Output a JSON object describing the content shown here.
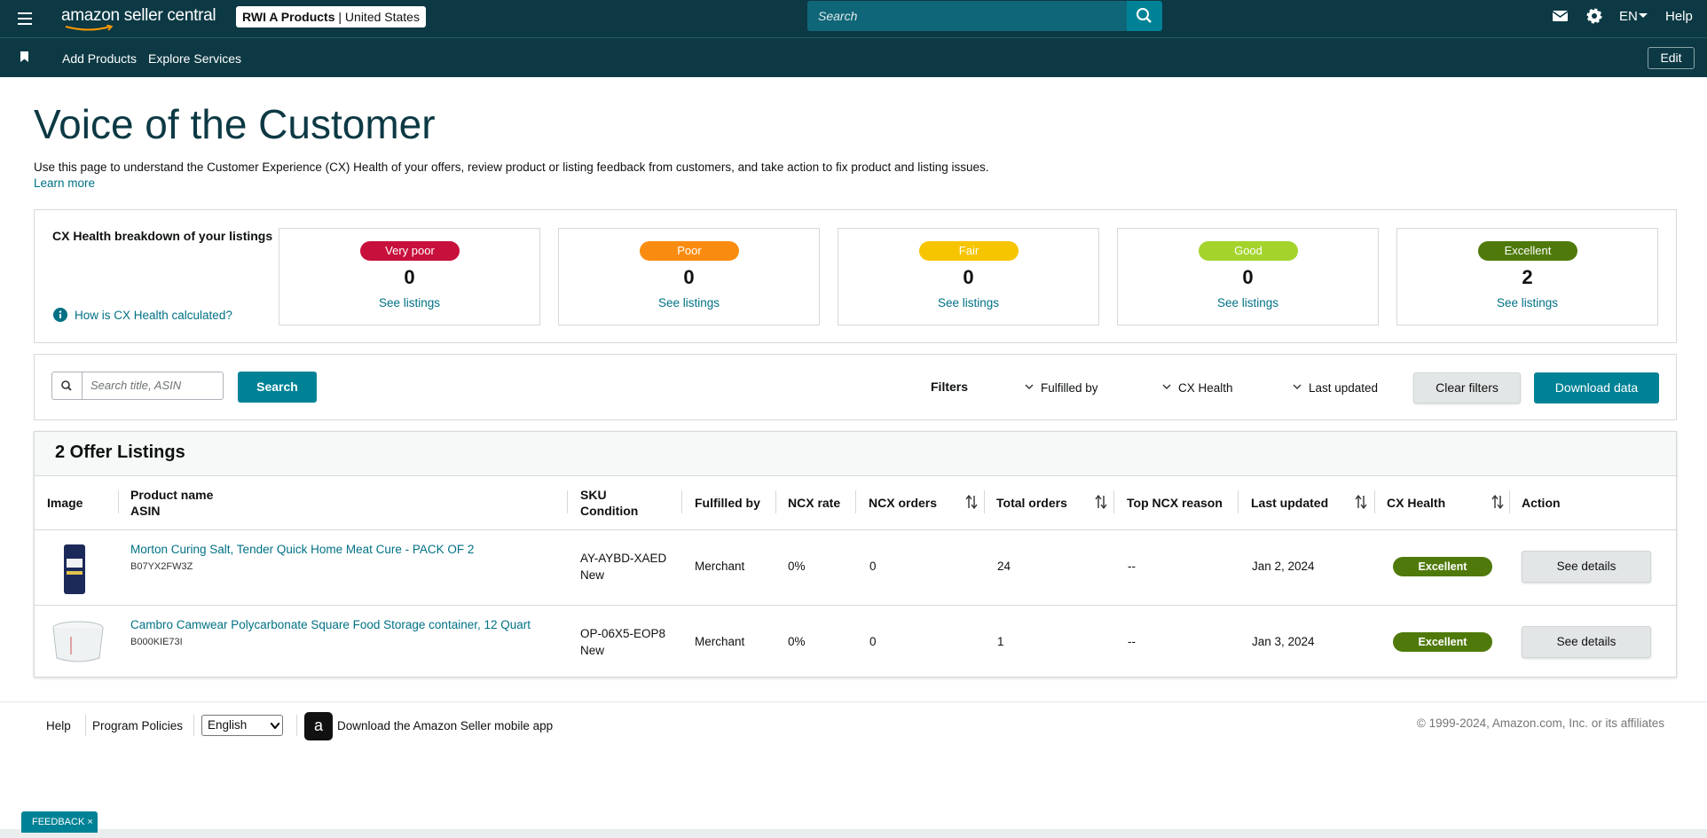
{
  "nav": {
    "logo": "amazon seller central",
    "account_name": "RWI A Products",
    "account_region": "United States",
    "search_placeholder": "Search",
    "language": "EN",
    "help": "Help",
    "links": [
      "Add Products",
      "Explore Services"
    ],
    "edit": "Edit"
  },
  "page": {
    "title": "Voice of the Customer",
    "description": "Use this page to understand the Customer Experience (CX) Health of your offers, review product or listing feedback from customers, and take action to fix product and listing issues.",
    "learn_more": "Learn more"
  },
  "cx_health": {
    "title": "CX Health breakdown of your listings",
    "how_link": "How is CX Health calculated?",
    "cards": [
      {
        "label": "Very poor",
        "color": "#c7103c",
        "count": 0,
        "link": "See listings"
      },
      {
        "label": "Poor",
        "color": "#f98c10",
        "count": 0,
        "link": "See listings"
      },
      {
        "label": "Fair",
        "color": "#f6c500",
        "count": 0,
        "link": "See listings"
      },
      {
        "label": "Good",
        "color": "#a4d42c",
        "count": 0,
        "link": "See listings"
      },
      {
        "label": "Excellent",
        "color": "#4f7a0b",
        "count": 2,
        "link": "See listings"
      }
    ]
  },
  "search": {
    "placeholder": "Search title, ASIN",
    "button": "Search",
    "filters_label": "Filters",
    "filters": [
      "Fulfilled by",
      "CX Health",
      "Last updated"
    ],
    "clear": "Clear filters",
    "download": "Download data"
  },
  "listings": {
    "title": "2 Offer Listings",
    "columns": [
      {
        "label": "Image"
      },
      {
        "label": "Product name",
        "sub": "ASIN"
      },
      {
        "label": "SKU",
        "sub": "Condition"
      },
      {
        "label": "Fulfilled by"
      },
      {
        "label": "NCX rate"
      },
      {
        "label": "NCX orders",
        "sortable": true
      },
      {
        "label": "Total orders",
        "sortable": true
      },
      {
        "label": "Top NCX reason"
      },
      {
        "label": "Last updated",
        "sortable": true
      },
      {
        "label": "CX Health",
        "sortable": true
      },
      {
        "label": "Action"
      }
    ],
    "rows": [
      {
        "name": "Morton Curing Salt, Tender Quick Home Meat Cure - PACK OF 2",
        "asin": "B07YX2FW3Z",
        "sku": "AY-AYBD-XAED",
        "condition": "New",
        "fulfilled_by": "Merchant",
        "ncx_rate": "0%",
        "ncx_orders": 0,
        "total_orders": 24,
        "top_reason": "--",
        "last_updated": "Jan 2, 2024",
        "cx_health": "Excellent",
        "action": "See details"
      },
      {
        "name": "Cambro Camwear Polycarbonate Square Food Storage container, 12 Quart",
        "asin": "B000KIE73I",
        "sku": "OP-06X5-EOP8",
        "condition": "New",
        "fulfilled_by": "Merchant",
        "ncx_rate": "0%",
        "ncx_orders": 0,
        "total_orders": 1,
        "top_reason": "--",
        "last_updated": "Jan 3, 2024",
        "cx_health": "Excellent",
        "action": "See details"
      }
    ]
  },
  "footer": {
    "links": [
      "Help",
      "Program Policies"
    ],
    "language": "English",
    "app": "Download the Amazon Seller mobile app",
    "copyright": "© 1999-2024, Amazon.com, Inc. or its affiliates",
    "feedback": "FEEDBACK"
  }
}
